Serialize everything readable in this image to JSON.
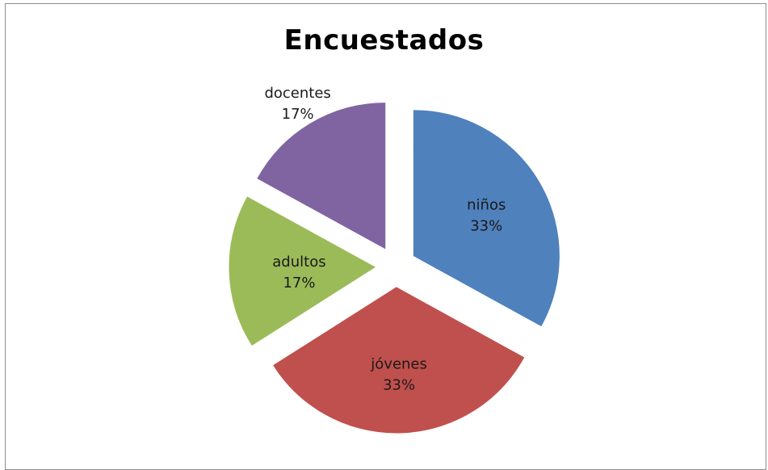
{
  "chart_data": {
    "type": "pie",
    "title": "Encuestados",
    "slices": [
      {
        "name": "niños",
        "value": 33,
        "label": "33%",
        "color": "#4f81bd"
      },
      {
        "name": "jóvenes",
        "value": 33,
        "label": "33%",
        "color": "#c0504d"
      },
      {
        "name": "adultos",
        "value": 17,
        "label": "17%",
        "color": "#9bbb59"
      },
      {
        "name": "docentes",
        "value": 17,
        "label": "17%",
        "color": "#8064a2"
      }
    ],
    "exploded": true,
    "legend": "none"
  }
}
